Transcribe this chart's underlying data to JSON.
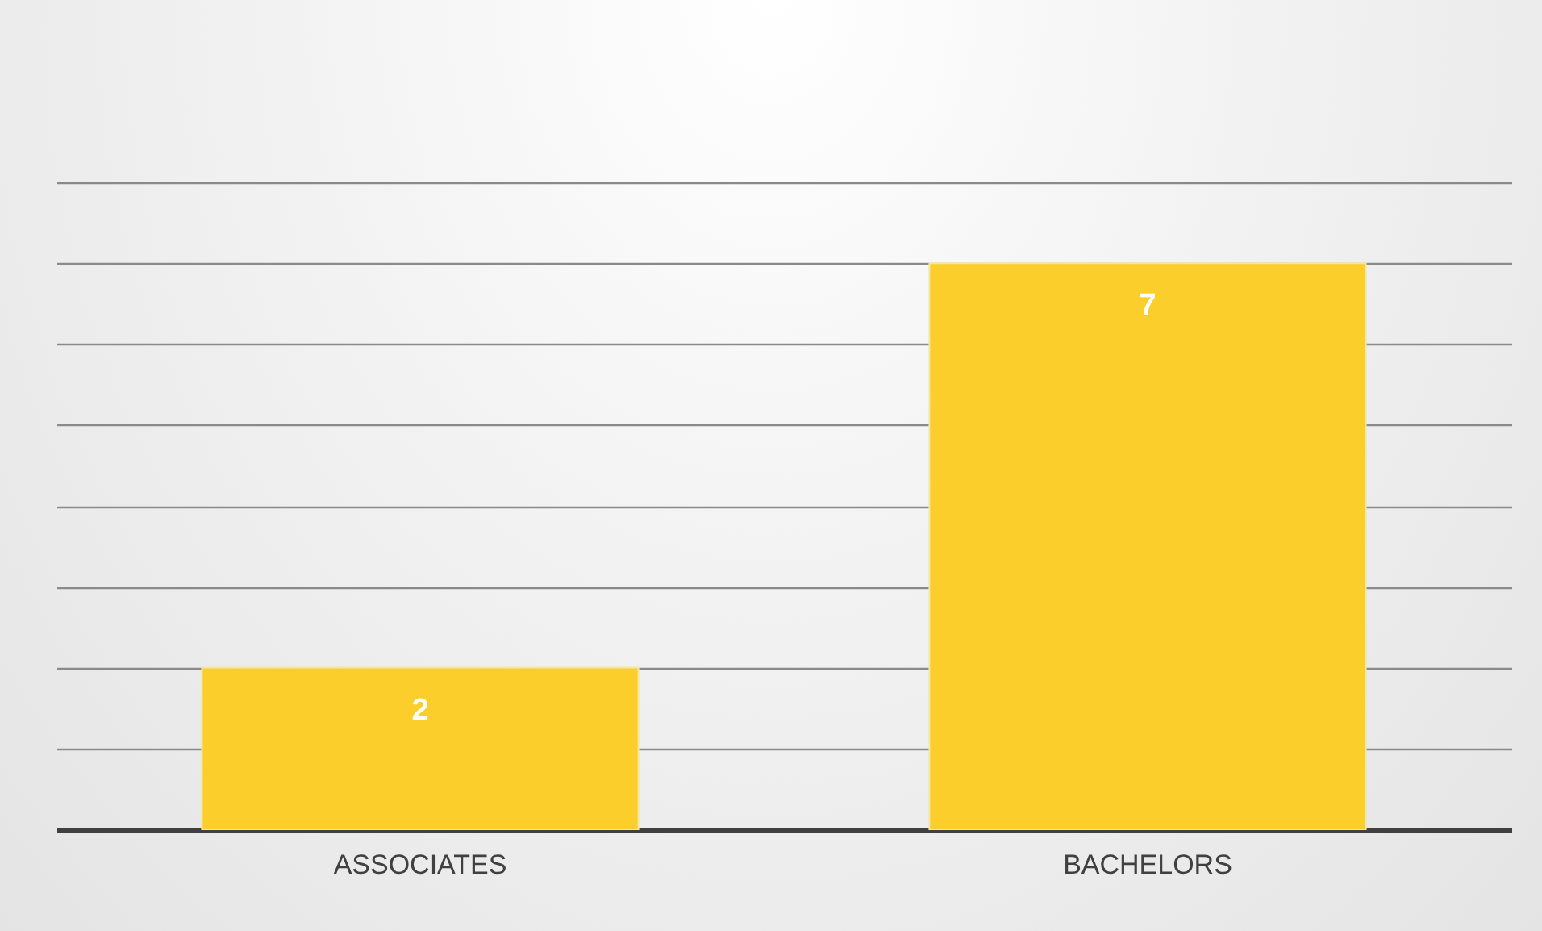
{
  "chart_data": {
    "type": "bar",
    "categories": [
      "ASSOCIATES",
      "BACHELORS"
    ],
    "values": [
      2,
      7
    ],
    "color": "#fbce2b",
    "ylim": [
      0,
      8
    ],
    "grid": "y",
    "tick_labels": "x",
    "data_labels": true
  }
}
